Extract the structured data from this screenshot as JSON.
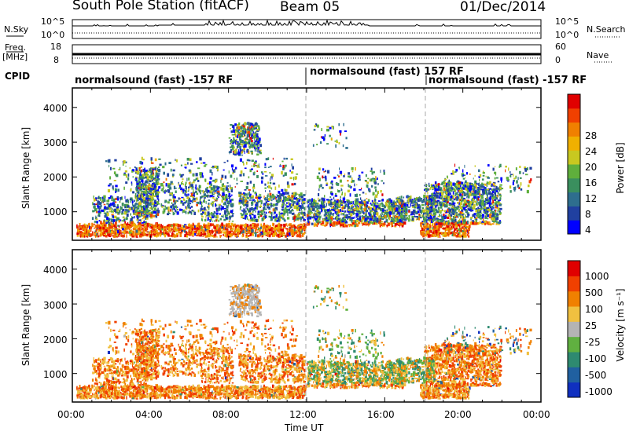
{
  "header": {
    "station": "South Pole Station (fitACF)",
    "beam": "Beam 05",
    "date": "01/Dec/2014"
  },
  "top_panels": {
    "nsky_label": "N.Sky",
    "nsky_ticks": [
      "10^5",
      "10^0"
    ],
    "nsearch_label": "N.Search",
    "nsearch_ticks": [
      "10^5",
      "10^0"
    ],
    "freq_label_1": "Freq.",
    "freq_label_2": "[MHz]",
    "freq_ticks": [
      "18",
      "8"
    ],
    "nave_label": "Nave",
    "nave_ticks": [
      "60",
      "0"
    ],
    "cpid_label": "CPID",
    "cpid_segments": [
      {
        "label": "normalsound (fast) -157 RF",
        "start": 0
      },
      {
        "label": "normalsound (fast) 157 RF",
        "start": 12
      },
      {
        "label": "normalsound (fast) -157 RF",
        "start": 18
      }
    ]
  },
  "chart_data": [
    {
      "type": "heatmap",
      "parameter": "Power",
      "ylabel": "Slant Range [km]",
      "ylim": [
        180,
        4560
      ],
      "yticks": [
        "1000",
        "2000",
        "3000",
        "4000"
      ],
      "xlim": [
        0,
        24
      ],
      "colorbar_label": "Power [dB]",
      "colorbar_ticks": [
        "28",
        "24",
        "20",
        "16",
        "12",
        "8",
        "4"
      ],
      "colors": [
        "#0000ff",
        "#2040a0",
        "#2e6e8e",
        "#3a8f5e",
        "#5faf3c",
        "#c8c820",
        "#f0b000",
        "#f08000",
        "#f04000",
        "#e00000"
      ]
    },
    {
      "type": "heatmap",
      "parameter": "Velocity",
      "ylabel": "Slant Range [km]",
      "ylim": [
        180,
        4560
      ],
      "yticks": [
        "1000",
        "2000",
        "3000",
        "4000"
      ],
      "xlim": [
        0,
        24
      ],
      "xlabel": "Time UT",
      "xticks": [
        "00:00",
        "04:00",
        "08:00",
        "12:00",
        "16:00",
        "20:00",
        "00:00"
      ],
      "colorbar_label": "Velocity [m s⁻¹]",
      "colorbar_ticks": [
        "1000",
        "500",
        "100",
        "25",
        "-25",
        "-100",
        "-500",
        "-1000"
      ],
      "colors": [
        "#1030c0",
        "#2060a0",
        "#2e8a70",
        "#60b040",
        "#b4b4b4",
        "#f0c040",
        "#f08000",
        "#f04000",
        "#e00000"
      ]
    }
  ]
}
